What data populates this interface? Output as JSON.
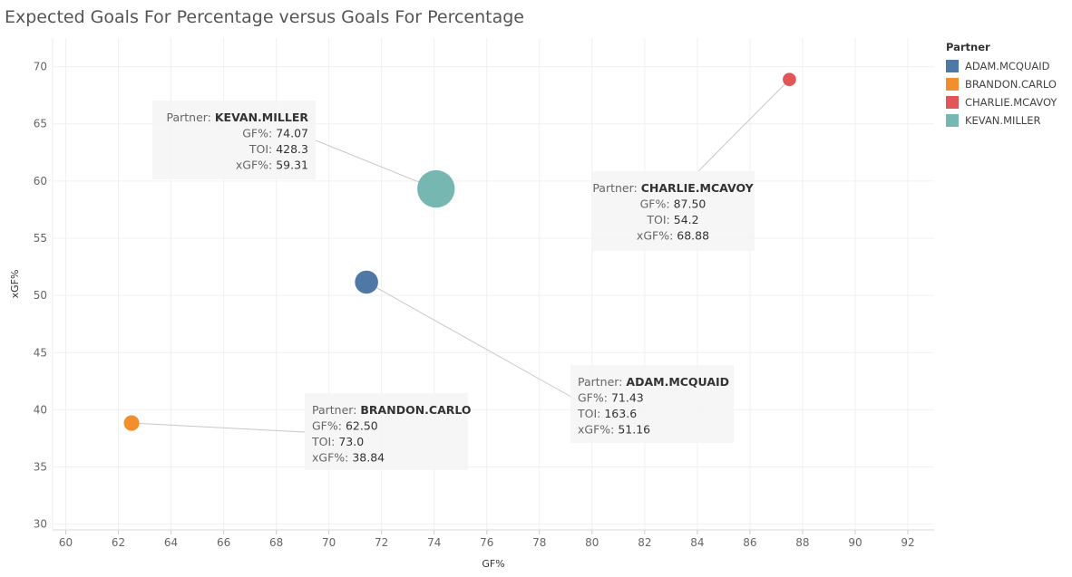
{
  "chart_data": {
    "type": "scatter",
    "title": "Expected Goals For Percentage versus Goals For Percentage",
    "xlabel": "GF%",
    "ylabel": "xGF%",
    "xlim": [
      59.5,
      93
    ],
    "ylim": [
      29.5,
      72.5
    ],
    "xticks": [
      60,
      62,
      64,
      66,
      68,
      70,
      72,
      74,
      76,
      78,
      80,
      82,
      84,
      86,
      88,
      90,
      92
    ],
    "yticks": [
      30,
      35,
      40,
      45,
      50,
      55,
      60,
      65,
      70
    ],
    "size_field": "TOI",
    "grid": true,
    "legend": {
      "title": "Partner",
      "position": "right",
      "entries": [
        "ADAM.MCQUAID",
        "BRANDON.CARLO",
        "CHARLIE.MCAVOY",
        "KEVAN.MILLER"
      ]
    },
    "series": [
      {
        "name": "ADAM.MCQUAID",
        "color": "#4e79a7",
        "x": 71.43,
        "y": 51.16,
        "toi": 163.6,
        "gf_label": "71.43",
        "toi_label": "163.6",
        "xgf_label": "51.16"
      },
      {
        "name": "BRANDON.CARLO",
        "color": "#f28e2b",
        "x": 62.5,
        "y": 38.84,
        "toi": 73.0,
        "gf_label": "62.50",
        "toi_label": "73.0",
        "xgf_label": "38.84"
      },
      {
        "name": "CHARLIE.MCAVOY",
        "color": "#e15759",
        "x": 87.5,
        "y": 68.88,
        "toi": 54.2,
        "gf_label": "87.50",
        "toi_label": "54.2",
        "xgf_label": "68.88"
      },
      {
        "name": "KEVAN.MILLER",
        "color": "#76b7b2",
        "x": 74.07,
        "y": 59.31,
        "toi": 428.3,
        "gf_label": "74.07",
        "toi_label": "428.3",
        "xgf_label": "59.31"
      }
    ],
    "annotation_labels": {
      "partner": "Partner: ",
      "gf": "GF%: ",
      "toi": "TOI: ",
      "xgf": "xGF%: "
    }
  }
}
